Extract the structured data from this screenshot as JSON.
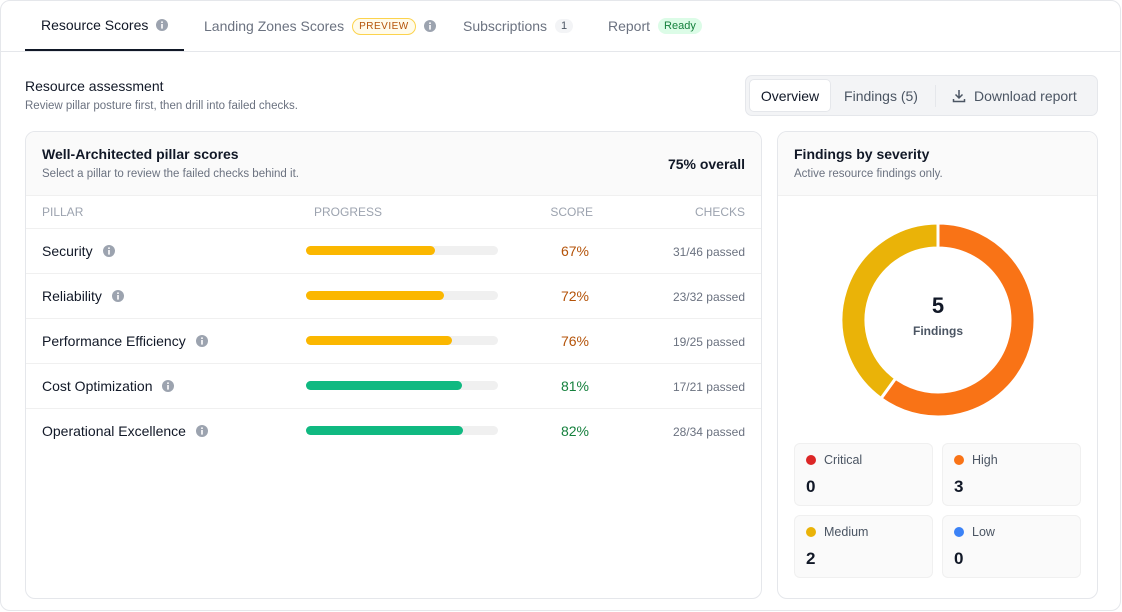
{
  "tabs": [
    {
      "label": "Resource Scores",
      "active": true
    },
    {
      "label": "Landing Zones Scores",
      "badge": "PREVIEW"
    },
    {
      "label": "Subscriptions",
      "badge": 1
    },
    {
      "label": "Report",
      "badge": "Ready"
    }
  ],
  "header": {
    "title": "Resource assessment",
    "subtitle": "Review pillar posture first, then drill into failed checks."
  },
  "view_switch": {
    "options": [
      "Overview",
      "Findings (5)"
    ],
    "action": "Download report"
  },
  "pillar_scores": {
    "title": "Well-Architected pillar scores",
    "subtitle": "Select a pillar to review the failed checks behind it.",
    "overall": "75% overall",
    "columns": [
      "PILLAR",
      "PROGRESS",
      "SCORE",
      "CHECKS"
    ],
    "rows": [
      {
        "pillar": "Security",
        "score": {
          "value": 67,
          "label": "67%"
        },
        "checks": "31/46 passed",
        "color": "#fbb700",
        "text_color": "#b45309"
      },
      {
        "pillar": "Reliability",
        "score": {
          "value": 72,
          "label": "72%"
        },
        "checks": "23/32 passed",
        "color": "#fbb700",
        "text_color": "#b45309"
      },
      {
        "pillar": "Performance Efficiency",
        "score": {
          "value": 76,
          "label": "76%"
        },
        "checks": "19/25 passed",
        "color": "#fbb700",
        "text_color": "#b45309"
      },
      {
        "pillar": "Cost Optimization",
        "score": {
          "value": 81,
          "label": "81%"
        },
        "checks": "17/21 passed",
        "color": "#10b981",
        "text_color": "#15803d"
      },
      {
        "pillar": "Operational Excellence",
        "score": {
          "value": 82,
          "label": "82%"
        },
        "checks": "28/34 passed",
        "color": "#10b981",
        "text_color": "#15803d"
      }
    ]
  },
  "findings": {
    "title": "Findings by severity",
    "subtitle": "Active resource findings only.",
    "total": 5,
    "total_label": "Findings",
    "severities": [
      {
        "name": "Critical",
        "count": 0,
        "color": "#dc2626"
      },
      {
        "name": "High",
        "count": 3,
        "color": "#f97316"
      },
      {
        "name": "Medium",
        "count": 2,
        "color": "#eab308"
      },
      {
        "name": "Low",
        "count": 0,
        "color": "#3b82f6"
      }
    ]
  }
}
